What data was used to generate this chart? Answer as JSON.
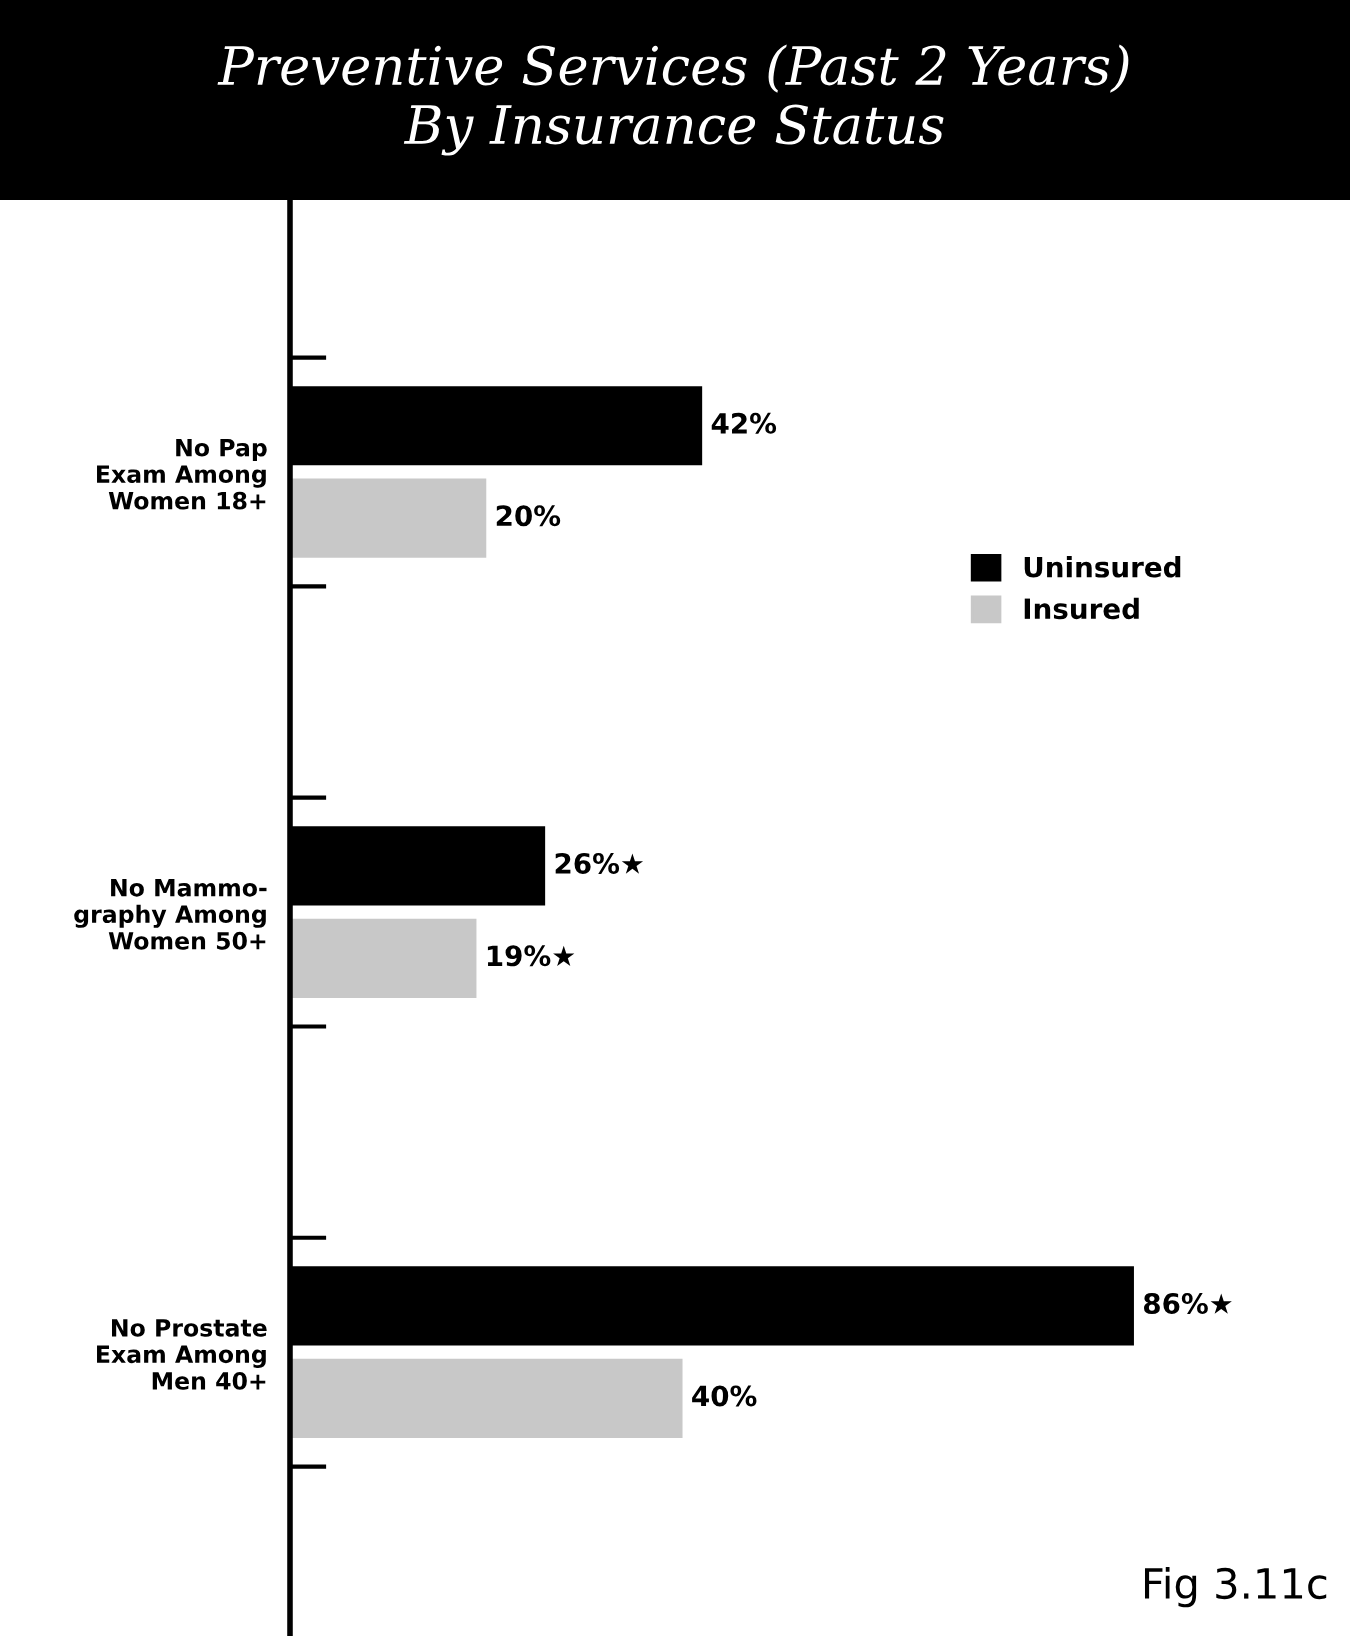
{
  "chart_data": {
    "type": "bar",
    "orientation": "horizontal",
    "title": "Preventive Services (Past 2 Years)\nBy Insurance Status",
    "categories": [
      "No Pap\nExam Among\nWomen 18+",
      "No Mammo-\ngraphy Among\nWomen 50+",
      "No Prostate\nExam Among\nMen 40+"
    ],
    "series": [
      {
        "name": "Uninsured",
        "color": "#000000",
        "values": [
          42,
          26,
          86
        ],
        "value_labels": [
          "42%",
          "26%★",
          "86%★"
        ]
      },
      {
        "name": "Insured",
        "color": "#c8c8c8",
        "values": [
          20,
          19,
          40
        ],
        "value_labels": [
          "20%",
          "19%★",
          "40%"
        ]
      }
    ],
    "legend": "right",
    "grid": false,
    "tick_labels": "y",
    "annotations": [
      "Fig 3.11c"
    ]
  }
}
